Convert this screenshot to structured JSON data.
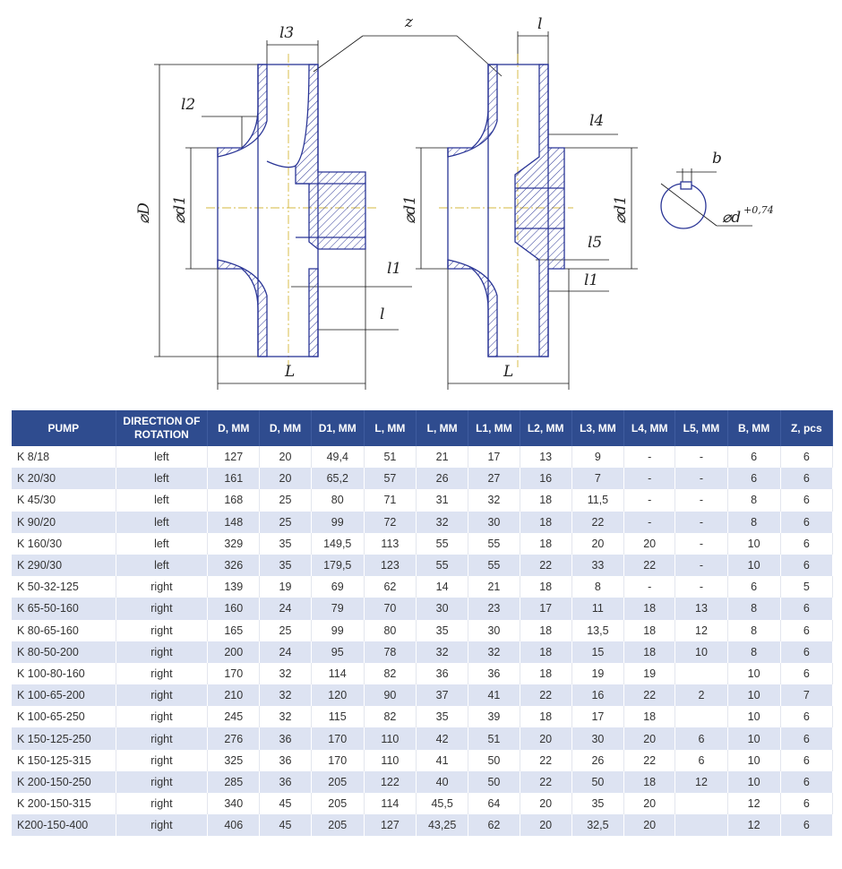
{
  "drawing": {
    "labels": {
      "z": "z",
      "l3": "l3",
      "l_top": "l",
      "l2": "l2",
      "l4": "l4",
      "D": "⌀D",
      "d1_left": "⌀d1",
      "d1_mid": "⌀d1",
      "d1_right": "⌀d1",
      "l1_left": "l1",
      "l_left": "l",
      "l5": "l5",
      "l1_right": "l1",
      "L_left": "L",
      "L_right": "L",
      "b": "b",
      "d_key": "⌀d",
      "tolerance": "+0,74"
    },
    "line_color": "#2a3596"
  },
  "table": {
    "header_color": "#2f4c8f",
    "headers": [
      "PUMP",
      "DIRECTION OF ROTATION",
      "D, MM",
      "D, MM",
      "D1, MM",
      "L, MM",
      "L, MM",
      "L1, MM",
      "L2, MM",
      "L3, MM",
      "L4, MM",
      "L5, MM",
      "B, MM",
      "Z, pcs"
    ],
    "rows": [
      [
        "K 8/18",
        "left",
        "127",
        "20",
        "49,4",
        "51",
        "21",
        "17",
        "13",
        "9",
        "-",
        "-",
        "6",
        "6"
      ],
      [
        "K 20/30",
        "left",
        "161",
        "20",
        "65,2",
        "57",
        "26",
        "27",
        "16",
        "7",
        "-",
        "-",
        "6",
        "6"
      ],
      [
        "K 45/30",
        "left",
        "168",
        "25",
        "80",
        "71",
        "31",
        "32",
        "18",
        "11,5",
        "-",
        "-",
        "8",
        "6"
      ],
      [
        "K 90/20",
        "left",
        "148",
        "25",
        "99",
        "72",
        "32",
        "30",
        "18",
        "22",
        "-",
        "-",
        "8",
        "6"
      ],
      [
        "K 160/30",
        "left",
        "329",
        "35",
        "149,5",
        "113",
        "55",
        "55",
        "18",
        "20",
        "20",
        "-",
        "10",
        "6"
      ],
      [
        "K 290/30",
        "left",
        "326",
        "35",
        "179,5",
        "123",
        "55",
        "55",
        "22",
        "33",
        "22",
        "-",
        "10",
        "6"
      ],
      [
        "K 50-32-125",
        "right",
        "139",
        "19",
        "69",
        "62",
        "14",
        "21",
        "18",
        "8",
        "-",
        "-",
        "6",
        "5"
      ],
      [
        "K 65-50-160",
        "right",
        "160",
        "24",
        "79",
        "70",
        "30",
        "23",
        "17",
        "11",
        "18",
        "13",
        "8",
        "6"
      ],
      [
        "K 80-65-160",
        "right",
        "165",
        "25",
        "99",
        "80",
        "35",
        "30",
        "18",
        "13,5",
        "18",
        "12",
        "8",
        "6"
      ],
      [
        "K 80-50-200",
        "right",
        "200",
        "24",
        "95",
        "78",
        "32",
        "32",
        "18",
        "15",
        "18",
        "10",
        "8",
        "6"
      ],
      [
        "K 100-80-160",
        "right",
        "170",
        "32",
        "114",
        "82",
        "36",
        "36",
        "18",
        "19",
        "19",
        "",
        "10",
        "6"
      ],
      [
        "K 100-65-200",
        "right",
        "210",
        "32",
        "120",
        "90",
        "37",
        "41",
        "22",
        "16",
        "22",
        "2",
        "10",
        "7"
      ],
      [
        "K 100-65-250",
        "right",
        "245",
        "32",
        "115",
        "82",
        "35",
        "39",
        "18",
        "17",
        "18",
        "",
        "10",
        "6"
      ],
      [
        "K 150-125-250",
        "right",
        "276",
        "36",
        "170",
        "110",
        "42",
        "51",
        "20",
        "30",
        "20",
        "6",
        "10",
        "6"
      ],
      [
        "K 150-125-315",
        "right",
        "325",
        "36",
        "170",
        "110",
        "41",
        "50",
        "22",
        "26",
        "22",
        "6",
        "10",
        "6"
      ],
      [
        "K 200-150-250",
        "right",
        "285",
        "36",
        "205",
        "122",
        "40",
        "50",
        "22",
        "50",
        "18",
        "12",
        "10",
        "6"
      ],
      [
        "K 200-150-315",
        "right",
        "340",
        "45",
        "205",
        "114",
        "45,5",
        "64",
        "20",
        "35",
        "20",
        "",
        "12",
        "6"
      ],
      [
        "K200-150-400",
        "right",
        "406",
        "45",
        "205",
        "127",
        "43,25",
        "62",
        "20",
        "32,5",
        "20",
        "",
        "12",
        "6"
      ]
    ]
  }
}
